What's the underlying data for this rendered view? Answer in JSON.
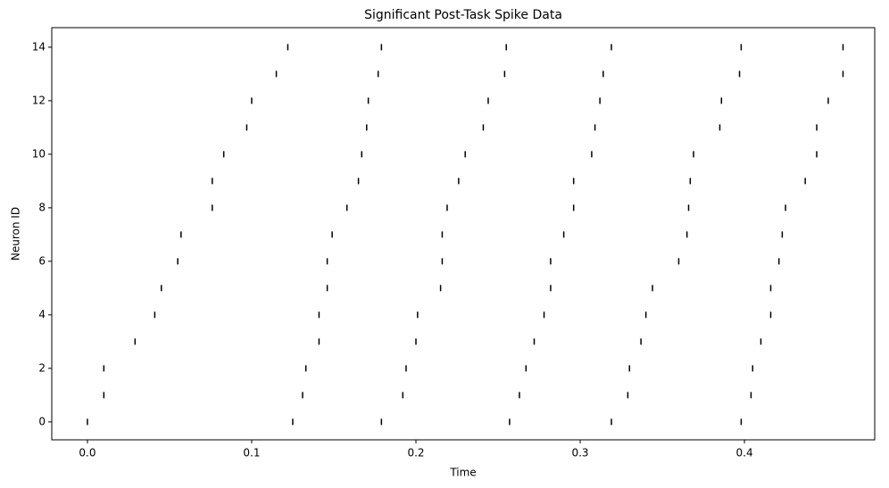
{
  "chart_data": {
    "type": "raster",
    "title": "Significant Post-Task Spike Data",
    "x_label": "Time",
    "y_label": "Neuron ID",
    "color": "#000000",
    "neurons": [
      0,
      1,
      2,
      3,
      4,
      5,
      6,
      7,
      8,
      9,
      10,
      11,
      12,
      13,
      14
    ],
    "events": [
      [
        0.0,
        0.125,
        0.179,
        0.257,
        0.319,
        0.398
      ],
      [
        0.01,
        0.131,
        0.192,
        0.263,
        0.329,
        0.404
      ],
      [
        0.01,
        0.133,
        0.194,
        0.267,
        0.33,
        0.405
      ],
      [
        0.029,
        0.141,
        0.2,
        0.272,
        0.337,
        0.41
      ],
      [
        0.041,
        0.141,
        0.201,
        0.278,
        0.34,
        0.416
      ],
      [
        0.045,
        0.146,
        0.215,
        0.282,
        0.344,
        0.416
      ],
      [
        0.055,
        0.146,
        0.216,
        0.282,
        0.36,
        0.421
      ],
      [
        0.057,
        0.149,
        0.216,
        0.29,
        0.365,
        0.423
      ],
      [
        0.076,
        0.158,
        0.219,
        0.296,
        0.366,
        0.425
      ],
      [
        0.076,
        0.165,
        0.226,
        0.296,
        0.367,
        0.437
      ],
      [
        0.083,
        0.167,
        0.23,
        0.307,
        0.369,
        0.444
      ],
      [
        0.097,
        0.17,
        0.241,
        0.309,
        0.385,
        0.444
      ],
      [
        0.1,
        0.171,
        0.244,
        0.312,
        0.386,
        0.451
      ],
      [
        0.115,
        0.177,
        0.254,
        0.314,
        0.397,
        0.46
      ],
      [
        0.122,
        0.179,
        0.255,
        0.319,
        0.398,
        0.46
      ]
    ],
    "xlim": [
      -0.0217,
      0.4793
    ],
    "ylim": [
      -0.67,
      14.73
    ],
    "xticks": [
      {
        "value": 0,
        "label": "0.0"
      },
      0.1,
      0.2,
      0.3,
      0.4
    ],
    "yticks": [
      0,
      2,
      4,
      6,
      8,
      10,
      12,
      14
    ]
  }
}
